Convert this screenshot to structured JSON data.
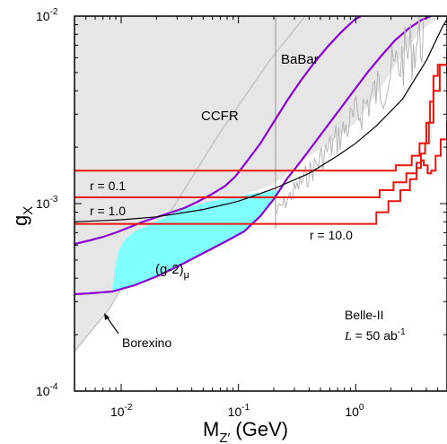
{
  "chart_data": {
    "type": "line",
    "xlabel": "M",
    "xlabel_sub": "Z′",
    "xlabel_unit": " (GeV)",
    "ylabel": "g",
    "ylabel_sub": "X",
    "x_log": true,
    "y_log": true,
    "xlim": [
      0.004,
      6
    ],
    "ylim": [
      0.0001,
      0.01
    ],
    "x_ticks": [
      {
        "value": 0.01,
        "base": "10",
        "exp": "-2"
      },
      {
        "value": 0.1,
        "base": "10",
        "exp": "-1"
      },
      {
        "value": 1,
        "base": "10",
        "exp": "0"
      }
    ],
    "y_ticks": [
      {
        "value": 0.0001,
        "base": "10",
        "exp": "-4"
      },
      {
        "value": 0.001,
        "base": "10",
        "exp": "-3"
      },
      {
        "value": 0.01,
        "base": "10",
        "exp": "-2"
      }
    ],
    "colors": {
      "excluded_fill": "#e6e6e6",
      "excluded_edge": "#b9b9b9",
      "g2_band": "#80ffff",
      "purple": "#8a00d4",
      "red": "#e8160c",
      "black": "#000000",
      "babar": "#a8a8a8"
    },
    "regions": [
      {
        "label": "CCFR"
      },
      {
        "label": "BaBar"
      },
      {
        "label": "Borexino"
      },
      {
        "label": "(g-2)",
        "label_sub": "μ"
      }
    ],
    "sensitivity": {
      "experiment": "Belle-II",
      "lumi_symbol": "L",
      "lumi_value": " = 50 ab",
      "lumi_exp": "-1"
    },
    "series": [
      {
        "name": "r = 0.1",
        "style": "red-step",
        "x": [
          0.004,
          1.5,
          2.2,
          3.0,
          3.5,
          4.0,
          4.3,
          4.6,
          5.0,
          6.0
        ],
        "y": [
          0.0015,
          0.0015,
          0.0016,
          0.0018,
          0.0021,
          0.0027,
          0.0035,
          0.0048,
          0.0055,
          0.0049
        ]
      },
      {
        "name": "r = 1.0",
        "style": "red-step",
        "x": [
          0.004,
          1.1,
          1.6,
          2.1,
          2.7,
          3.3,
          3.6,
          3.9,
          4.2,
          4.6,
          5.2,
          6.0
        ],
        "y": [
          0.00108,
          0.00108,
          0.00118,
          0.0013,
          0.00145,
          0.00165,
          0.00185,
          0.0021,
          0.0027,
          0.004,
          0.0055,
          0.0065
        ]
      },
      {
        "name": "r = 10.0",
        "style": "red-step",
        "x": [
          0.004,
          1.2,
          1.5,
          1.9,
          2.4,
          2.9,
          3.3,
          3.6,
          3.8,
          4.1,
          4.4,
          4.8,
          5.3,
          6.0
        ],
        "y": [
          0.00078,
          0.00078,
          0.0009,
          0.00103,
          0.00118,
          0.00135,
          0.00155,
          0.0017,
          0.0016,
          0.00145,
          0.0015,
          0.0018,
          0.0022,
          0.0027
        ]
      },
      {
        "name": "",
        "style": "black",
        "x": [
          0.004,
          0.01,
          0.02,
          0.05,
          0.1,
          0.2,
          0.4,
          0.7,
          1.0,
          1.5,
          2.5,
          4.0,
          5.5,
          6.0
        ],
        "y": [
          0.0008,
          0.00082,
          0.00085,
          0.00093,
          0.00103,
          0.0012,
          0.00145,
          0.0018,
          0.0021,
          0.0026,
          0.0036,
          0.0058,
          0.0088,
          0.0096
        ]
      }
    ]
  }
}
